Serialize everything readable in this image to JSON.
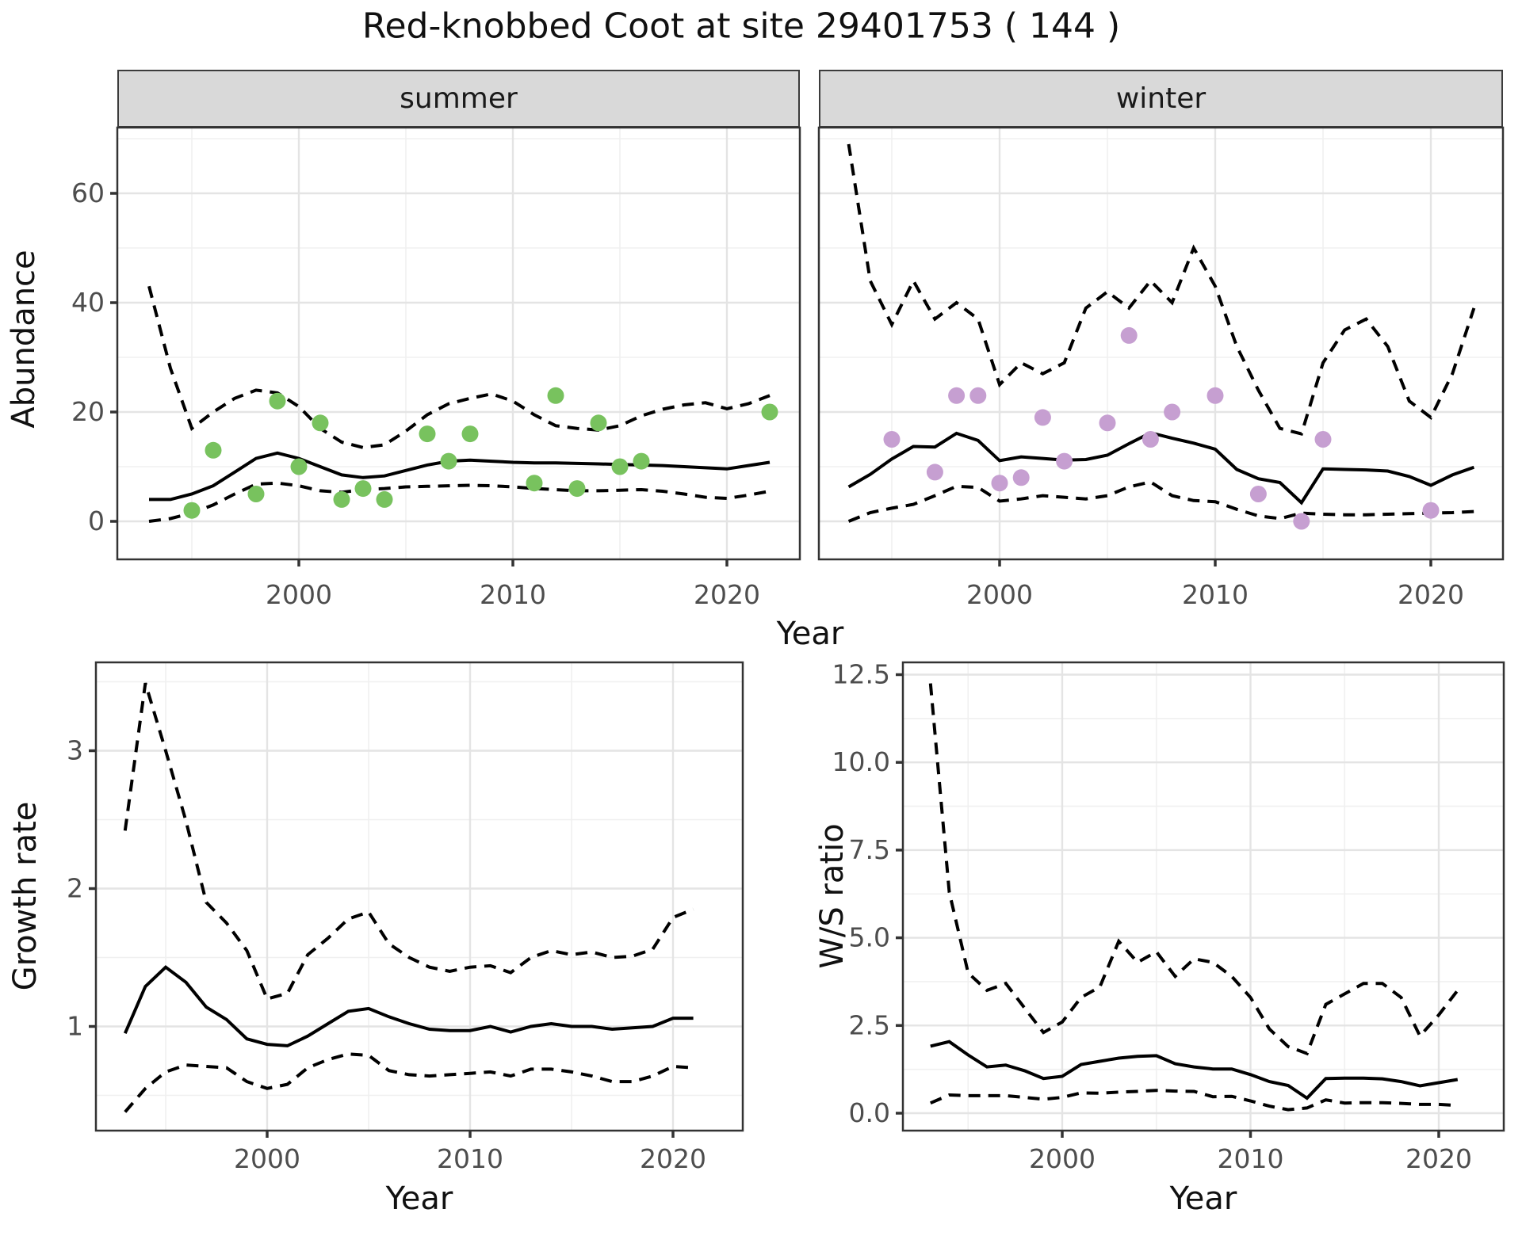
{
  "title": "Red-knobbed Coot at site 29401753 ( 144 )",
  "facets": [
    {
      "label": "summer"
    },
    {
      "label": "winter"
    }
  ],
  "axes": {
    "abundance_y_label": "Abundance",
    "top_x_label": "Year",
    "growth_y_label": "Growth rate",
    "bottom_left_x_label": "Year",
    "ws_y_label": "W/S ratio",
    "bottom_right_x_label": "Year"
  },
  "colors": {
    "summer_point": "#78c25e",
    "winter_point": "#c69fd1",
    "line": "#000000",
    "strip_bg": "#d9d9d9",
    "grid_major": "#e4e4e4",
    "grid_minor": "#f0f0f0",
    "tick_text": "#4d4d4d",
    "panel_border": "#333333"
  },
  "chart_data": [
    {
      "id": "summer-abundance",
      "type": "line",
      "title": "summer",
      "xlabel": "Year",
      "ylabel": "Abundance",
      "xlim": [
        1991.5,
        2023.5
      ],
      "ylim": [
        -7,
        72
      ],
      "legend": "none",
      "grid": true,
      "axis": {
        "x_ticks": [
          2000,
          2010,
          2020
        ],
        "x_tick_labels": [
          "2000",
          "2010",
          "2020"
        ],
        "x_minor": [
          1995,
          2005,
          2015
        ],
        "y_ticks": [
          0,
          20,
          40,
          60
        ],
        "y_tick_labels": [
          "0",
          "20",
          "40",
          "60"
        ],
        "y_minor": [
          10,
          30,
          50,
          70
        ]
      },
      "years": [
        1993,
        1994,
        1995,
        1996,
        1997,
        1998,
        1999,
        2000,
        2001,
        2002,
        2003,
        2004,
        2005,
        2006,
        2007,
        2008,
        2009,
        2010,
        2011,
        2012,
        2013,
        2014,
        2015,
        2016,
        2017,
        2018,
        2019,
        2020,
        2021,
        2022
      ],
      "series": [
        {
          "name": "upper-ci",
          "style": "dashed",
          "values": [
            43,
            28,
            17,
            20,
            22.5,
            24,
            23.5,
            21,
            17,
            14.5,
            13.5,
            14,
            16.5,
            19.5,
            21.5,
            22.5,
            23.3,
            22,
            19.5,
            17.5,
            17,
            16.7,
            17.5,
            19.3,
            20.5,
            21.3,
            21.7,
            20.6,
            21.5,
            23
          ]
        },
        {
          "name": "lower-ci",
          "style": "dashed",
          "values": [
            0,
            0.5,
            1.5,
            3,
            5,
            6.8,
            7,
            6.5,
            5.6,
            5.3,
            5.8,
            6,
            6.3,
            6.4,
            6.5,
            6.6,
            6.5,
            6.3,
            6,
            5.8,
            5.6,
            5.6,
            5.7,
            5.8,
            5.5,
            5,
            4.4,
            4.2,
            4.8,
            5.5
          ]
        },
        {
          "name": "fit",
          "style": "solid",
          "values": [
            4,
            4,
            5,
            6.5,
            9,
            11.5,
            12.5,
            11.5,
            10,
            8.5,
            8,
            8.3,
            9.3,
            10.3,
            11,
            11.2,
            11,
            10.8,
            10.7,
            10.7,
            10.6,
            10.5,
            10.4,
            10.3,
            10.2,
            10,
            9.8,
            9.6,
            10.2,
            10.8
          ]
        }
      ],
      "points": {
        "color": "#78c25e",
        "years": [
          1995,
          1996,
          1998,
          1999,
          2000,
          2001,
          2002,
          2003,
          2004,
          2006,
          2007,
          2008,
          2011,
          2012,
          2013,
          2014,
          2015,
          2016,
          2022
        ],
        "values": [
          2,
          13,
          5,
          22,
          10,
          18,
          4,
          6,
          4,
          16,
          11,
          16,
          7,
          23,
          6,
          18,
          10,
          11,
          20
        ]
      }
    },
    {
      "id": "winter-abundance",
      "type": "line",
      "title": "winter",
      "xlabel": "Year",
      "ylabel": "Abundance",
      "xlim": [
        1991.6,
        2023.3
      ],
      "ylim": [
        -7,
        72
      ],
      "legend": "none",
      "grid": true,
      "axis": {
        "x_ticks": [
          2000,
          2010,
          2020
        ],
        "x_tick_labels": [
          "2000",
          "2010",
          "2020"
        ],
        "x_minor": [
          1995,
          2005,
          2015
        ],
        "y_ticks": [
          0,
          20,
          40,
          60
        ],
        "y_tick_labels": [
          "0",
          "20",
          "40",
          "60"
        ],
        "y_minor": [
          10,
          30,
          50,
          70
        ]
      },
      "years": [
        1993,
        1994,
        1995,
        1996,
        1997,
        1998,
        1999,
        2000,
        2001,
        2002,
        2003,
        2004,
        2005,
        2006,
        2007,
        2008,
        2009,
        2010,
        2011,
        2012,
        2013,
        2014,
        2015,
        2016,
        2017,
        2018,
        2019,
        2020,
        2021,
        2022
      ],
      "series": [
        {
          "name": "upper-ci",
          "style": "dashed",
          "values": [
            69,
            44,
            36,
            44,
            37,
            40,
            37,
            25,
            29,
            27,
            29,
            39,
            42,
            39,
            44,
            40,
            50,
            43,
            32,
            24,
            17,
            16,
            29,
            35,
            37,
            32,
            22,
            19,
            27,
            39
          ]
        },
        {
          "name": "lower-ci",
          "style": "dashed",
          "values": [
            0,
            1.6,
            2.4,
            3.1,
            4.7,
            6.4,
            6.2,
            3.7,
            4.1,
            4.7,
            4.4,
            4.1,
            4.7,
            6.3,
            7.2,
            4.7,
            3.8,
            3.6,
            2.2,
            1,
            0.5,
            1.5,
            1.3,
            1.2,
            1.2,
            1.3,
            1.4,
            1.5,
            1.6,
            1.8
          ]
        },
        {
          "name": "fit",
          "style": "solid",
          "values": [
            6.3,
            8.6,
            11.4,
            13.7,
            13.6,
            16.1,
            14.8,
            11.1,
            11.8,
            11.5,
            11.2,
            11.3,
            12.1,
            14.2,
            16.2,
            15.2,
            14.3,
            13.2,
            9.5,
            7.8,
            7.1,
            3.4,
            9.6,
            9.5,
            9.4,
            9.2,
            8.2,
            6.6,
            8.5,
            9.9
          ]
        }
      ],
      "points": {
        "color": "#c69fd1",
        "years": [
          1995,
          1997,
          1998,
          1999,
          2000,
          2001,
          2002,
          2003,
          2005,
          2006,
          2007,
          2008,
          2010,
          2012,
          2014,
          2015,
          2020
        ],
        "values": [
          15,
          9,
          23,
          23,
          7,
          8,
          19,
          11,
          18,
          34,
          15,
          20,
          23,
          5,
          0,
          15,
          2
        ]
      }
    },
    {
      "id": "growth-rate",
      "type": "line",
      "title": "",
      "xlabel": "Year",
      "ylabel": "Growth rate",
      "xlim": [
        1991.6,
        2023.4
      ],
      "ylim": [
        0.24,
        3.64
      ],
      "legend": "none",
      "grid": true,
      "axis": {
        "x_ticks": [
          2000,
          2010,
          2020
        ],
        "x_tick_labels": [
          "2000",
          "2010",
          "2020"
        ],
        "x_minor": [
          1995,
          2005,
          2015
        ],
        "y_ticks": [
          1,
          2,
          3
        ],
        "y_tick_labels": [
          "1",
          "2",
          "3"
        ],
        "y_minor": [
          0.5,
          1.5,
          2.5,
          3.5
        ]
      },
      "years": [
        1993,
        1994,
        1995,
        1996,
        1997,
        1998,
        1999,
        2000,
        2001,
        2002,
        2003,
        2004,
        2005,
        2006,
        2007,
        2008,
        2009,
        2010,
        2011,
        2012,
        2013,
        2014,
        2015,
        2016,
        2017,
        2018,
        2019,
        2020,
        2021
      ],
      "series": [
        {
          "name": "upper-ci",
          "style": "dashed",
          "values": [
            2.42,
            3.49,
            3.0,
            2.49,
            1.9,
            1.75,
            1.55,
            1.2,
            1.24,
            1.52,
            1.64,
            1.78,
            1.83,
            1.6,
            1.5,
            1.43,
            1.4,
            1.43,
            1.44,
            1.39,
            1.5,
            1.55,
            1.52,
            1.54,
            1.5,
            1.51,
            1.56,
            1.79,
            1.85
          ]
        },
        {
          "name": "lower-ci",
          "style": "dashed",
          "values": [
            0.38,
            0.55,
            0.67,
            0.72,
            0.71,
            0.7,
            0.6,
            0.55,
            0.58,
            0.7,
            0.76,
            0.8,
            0.79,
            0.68,
            0.65,
            0.64,
            0.65,
            0.66,
            0.67,
            0.64,
            0.69,
            0.69,
            0.67,
            0.64,
            0.6,
            0.6,
            0.64,
            0.71,
            0.7
          ]
        },
        {
          "name": "fit",
          "style": "solid",
          "values": [
            0.95,
            1.29,
            1.43,
            1.32,
            1.14,
            1.05,
            0.91,
            0.87,
            0.86,
            0.93,
            1.02,
            1.11,
            1.13,
            1.07,
            1.02,
            0.98,
            0.97,
            0.97,
            1.0,
            0.96,
            1.0,
            1.02,
            1.0,
            1.0,
            0.98,
            0.99,
            1.0,
            1.06,
            1.06
          ]
        }
      ]
    },
    {
      "id": "ws-ratio",
      "type": "line",
      "title": "",
      "xlabel": "Year",
      "ylabel": "W/S ratio",
      "xlim": [
        1991.5,
        2023.4
      ],
      "ylim": [
        -0.5,
        12.85
      ],
      "legend": "none",
      "grid": true,
      "axis": {
        "x_ticks": [
          2000,
          2010,
          2020
        ],
        "x_tick_labels": [
          "2000",
          "2010",
          "2020"
        ],
        "x_minor": [
          1995,
          2005,
          2015
        ],
        "y_ticks": [
          0,
          2.5,
          5,
          7.5,
          10,
          12.5
        ],
        "y_tick_labels": [
          "0.0",
          "2.5",
          "5.0",
          "7.5",
          "10.0",
          "12.5"
        ],
        "y_minor": [
          1.25,
          3.75,
          6.25,
          8.75,
          11.25
        ]
      },
      "years": [
        1993,
        1994,
        1995,
        1996,
        1997,
        1998,
        1999,
        2000,
        2001,
        2002,
        2003,
        2004,
        2005,
        2006,
        2007,
        2008,
        2009,
        2010,
        2011,
        2012,
        2013,
        2014,
        2015,
        2016,
        2017,
        2018,
        2019,
        2020,
        2021
      ],
      "series": [
        {
          "name": "upper-ci",
          "style": "dashed",
          "values": [
            12.25,
            6.3,
            4.0,
            3.5,
            3.7,
            3.0,
            2.3,
            2.6,
            3.3,
            3.6,
            4.9,
            4.3,
            4.6,
            3.9,
            4.4,
            4.3,
            3.9,
            3.3,
            2.4,
            1.9,
            1.7,
            3.1,
            3.4,
            3.7,
            3.7,
            3.3,
            2.2,
            2.8,
            3.5
          ]
        },
        {
          "name": "lower-ci",
          "style": "dashed",
          "values": [
            0.29,
            0.52,
            0.5,
            0.5,
            0.5,
            0.45,
            0.4,
            0.45,
            0.58,
            0.57,
            0.6,
            0.62,
            0.65,
            0.63,
            0.62,
            0.47,
            0.48,
            0.35,
            0.2,
            0.1,
            0.15,
            0.38,
            0.29,
            0.3,
            0.3,
            0.28,
            0.25,
            0.25,
            0.22
          ]
        },
        {
          "name": "fit",
          "style": "solid",
          "values": [
            1.91,
            2.04,
            1.66,
            1.32,
            1.37,
            1.21,
            0.99,
            1.05,
            1.39,
            1.48,
            1.57,
            1.62,
            1.64,
            1.41,
            1.32,
            1.26,
            1.26,
            1.1,
            0.9,
            0.79,
            0.43,
            0.99,
            1.0,
            1.0,
            0.98,
            0.9,
            0.78,
            0.87,
            0.96
          ]
        }
      ]
    }
  ]
}
